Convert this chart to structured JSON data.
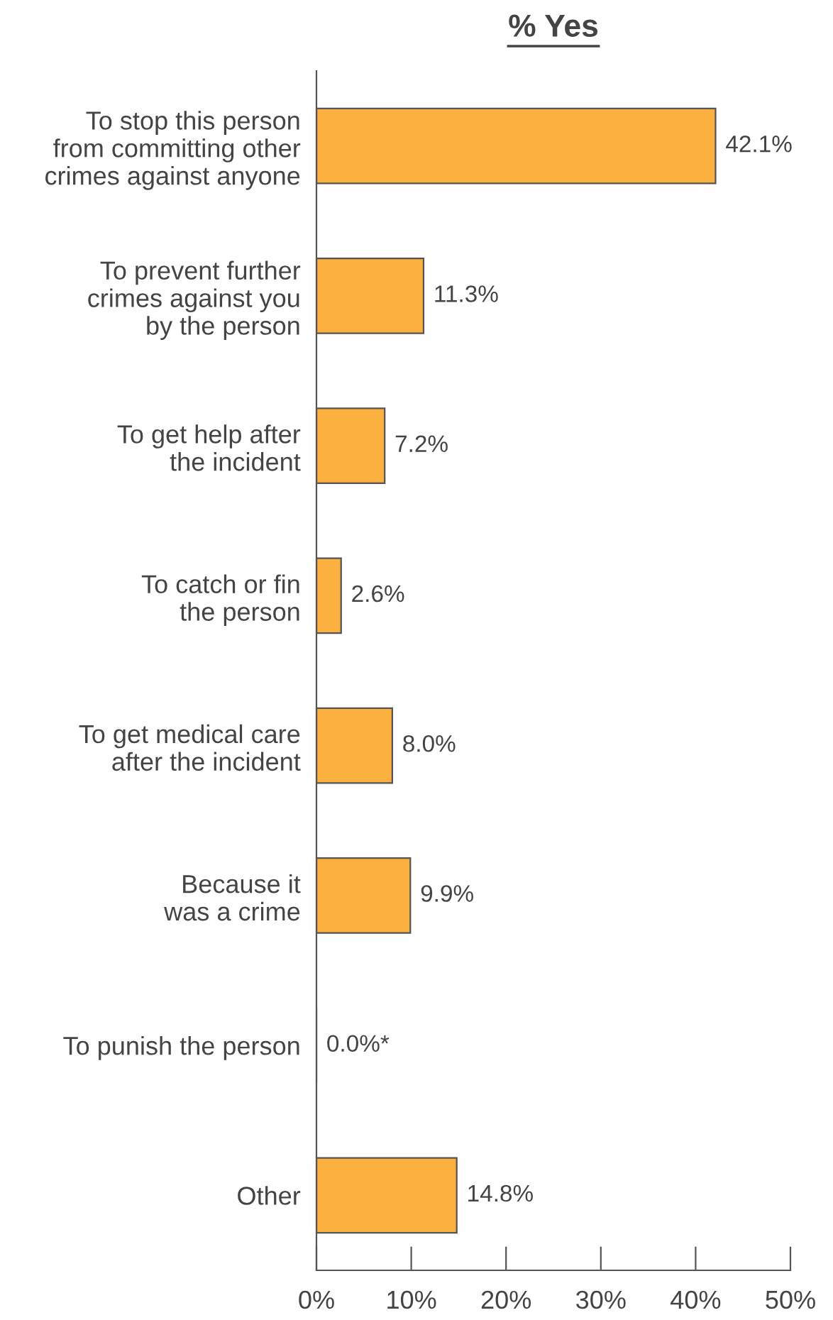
{
  "chart_data": {
    "type": "bar",
    "orientation": "horizontal",
    "title": "% Yes",
    "categories": [
      "To stop this person\nfrom committing other\ncrimes against anyone",
      "To prevent further\ncrimes against you\nby the person",
      "To get help after\nthe incident",
      "To catch or fin\nthe person",
      "To get medical care\nafter the incident",
      "Because it\nwas a crime",
      "To punish the person",
      "Other"
    ],
    "values": [
      42.1,
      11.3,
      7.2,
      2.6,
      8.0,
      9.9,
      0.0,
      14.8
    ],
    "value_labels": [
      "42.1%",
      "11.3%",
      "7.2%",
      "2.6%",
      "8.0%",
      "9.9%",
      "0.0%*",
      "14.8%"
    ],
    "color": "#fbb040",
    "xlim": [
      0,
      50
    ],
    "xticks": [
      {
        "value": 0,
        "label": "0%"
      },
      {
        "value": 10,
        "label": "10%"
      },
      {
        "value": 20,
        "label": "20%"
      },
      {
        "value": 30,
        "label": "30%"
      },
      {
        "value": 40,
        "label": "40%"
      },
      {
        "value": 50,
        "label": "50%"
      }
    ],
    "grid": false,
    "legend": false
  }
}
